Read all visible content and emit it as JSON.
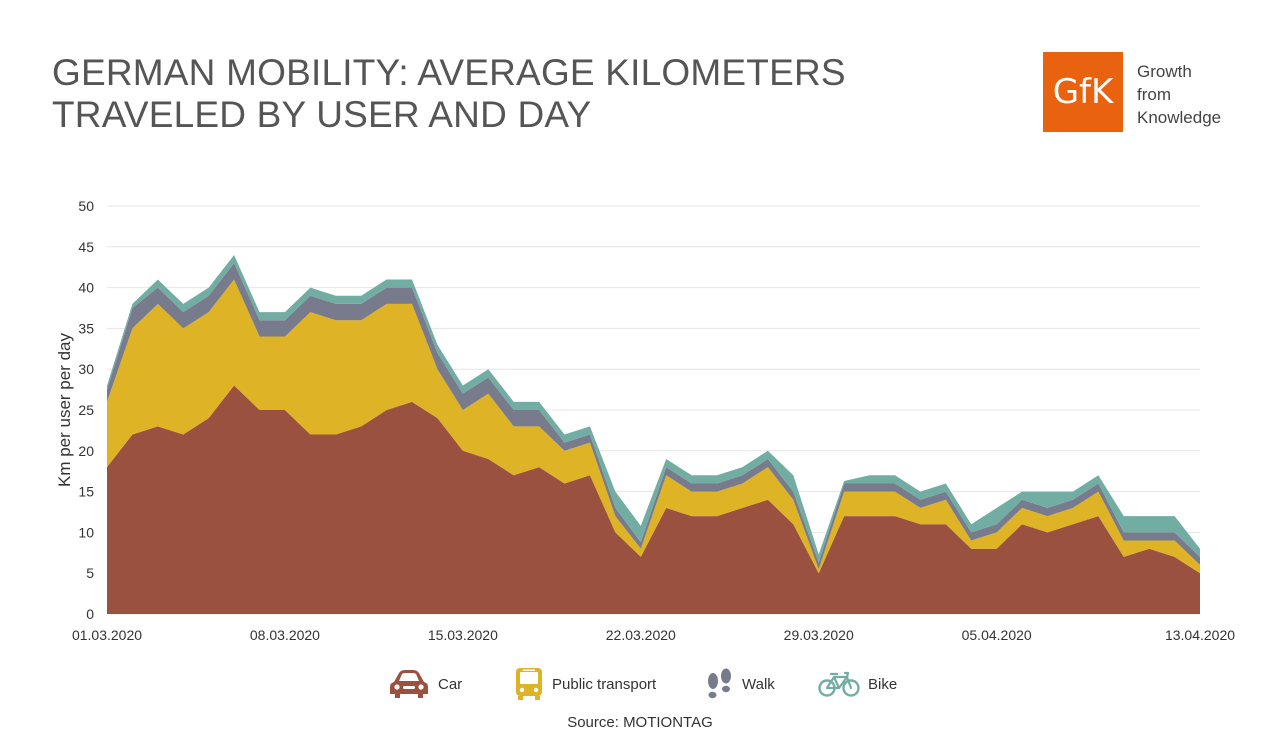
{
  "header": {
    "title_line1": "GERMAN MOBILITY: AVERAGE KILOMETERS",
    "title_line2": "TRAVELED BY USER AND DAY"
  },
  "logo": {
    "mark": "GfK",
    "tagline": [
      "Growth",
      "from",
      "Knowledge"
    ],
    "color": "#e8620f"
  },
  "source": "Source: MOTIONTAG",
  "chart_data": {
    "type": "area",
    "stacked": true,
    "title": "GERMAN MOBILITY: AVERAGE KILOMETERS TRAVELED BY USER AND DAY",
    "xlabel": "",
    "ylabel": "Km per user per day",
    "ylim": [
      0,
      50
    ],
    "yticks": [
      0,
      5,
      10,
      15,
      20,
      25,
      30,
      35,
      40,
      45,
      50
    ],
    "grid": true,
    "legend_position": "bottom-center",
    "x": [
      "01.03.2020",
      "02.03.2020",
      "03.03.2020",
      "04.03.2020",
      "05.03.2020",
      "06.03.2020",
      "07.03.2020",
      "08.03.2020",
      "09.03.2020",
      "10.03.2020",
      "11.03.2020",
      "12.03.2020",
      "13.03.2020",
      "14.03.2020",
      "15.03.2020",
      "16.03.2020",
      "17.03.2020",
      "18.03.2020",
      "19.03.2020",
      "20.03.2020",
      "21.03.2020",
      "22.03.2020",
      "23.03.2020",
      "24.03.2020",
      "25.03.2020",
      "26.03.2020",
      "27.03.2020",
      "28.03.2020",
      "29.03.2020",
      "30.03.2020",
      "31.03.2020",
      "01.04.2020",
      "02.04.2020",
      "03.04.2020",
      "04.04.2020",
      "05.04.2020",
      "06.04.2020",
      "07.04.2020",
      "08.04.2020",
      "09.04.2020",
      "10.04.2020",
      "11.04.2020",
      "12.04.2020",
      "13.04.2020"
    ],
    "xticks": [
      "01.03.2020",
      "08.03.2020",
      "15.03.2020",
      "22.03.2020",
      "29.03.2020",
      "05.04.2020",
      "13.04.2020"
    ],
    "series": [
      {
        "name": "Car",
        "color": "#9b5140",
        "icon": "car-icon",
        "values": [
          18,
          22,
          23,
          22,
          24,
          28,
          25,
          25,
          22,
          22,
          23,
          25,
          26,
          24,
          20,
          19,
          17,
          18,
          16,
          17,
          10,
          7,
          13,
          12,
          12,
          13,
          14,
          11,
          5,
          12,
          12,
          12,
          11,
          11,
          8,
          8,
          11,
          10,
          11,
          12,
          7,
          8,
          7,
          5
        ]
      },
      {
        "name": "Public transport",
        "color": "#deb325",
        "icon": "bus-icon",
        "values": [
          8,
          13,
          15,
          13,
          13,
          13,
          9,
          9,
          15,
          14,
          13,
          13,
          12,
          6,
          5,
          8,
          6,
          5,
          4,
          4,
          2,
          1,
          4,
          3,
          3,
          3,
          4,
          3,
          0.5,
          3,
          3,
          3,
          2,
          3,
          1,
          2,
          2,
          2,
          2,
          3,
          2,
          1,
          2,
          1
        ]
      },
      {
        "name": "Walk",
        "color": "#777b8c",
        "icon": "footprints-icon",
        "values": [
          1.5,
          2.5,
          2,
          2,
          2,
          2,
          2,
          2,
          2,
          2,
          2,
          2,
          2,
          2,
          2,
          2,
          2,
          2,
          1,
          1,
          1,
          0.8,
          1,
          1,
          1,
          1,
          1,
          1,
          0.8,
          1,
          1,
          1,
          1,
          1,
          1,
          1,
          1,
          1,
          1,
          1,
          1,
          1,
          1,
          1
        ]
      },
      {
        "name": "Bike",
        "color": "#72ada3",
        "icon": "bike-icon",
        "values": [
          0.5,
          0.5,
          1,
          1,
          1,
          1,
          1,
          1,
          1,
          1,
          1,
          1,
          1,
          1,
          1,
          1,
          1,
          1,
          1,
          1,
          2,
          2,
          1,
          1,
          1,
          1,
          1,
          2,
          1,
          0.3,
          1,
          1,
          1,
          1,
          1,
          2,
          1,
          2,
          1,
          1,
          2,
          2,
          2,
          1
        ]
      }
    ]
  }
}
